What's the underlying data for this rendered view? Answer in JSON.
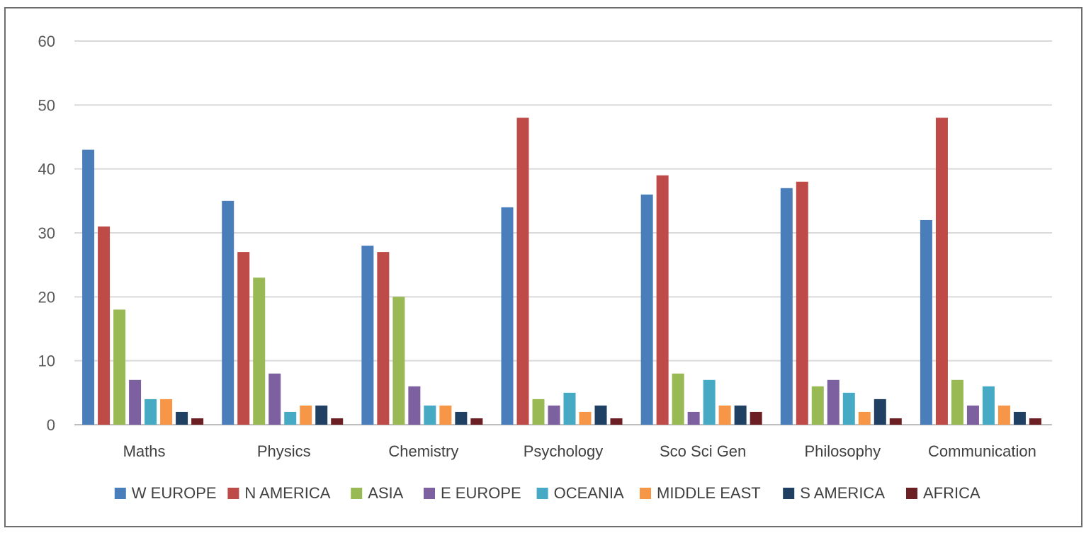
{
  "chart_data": {
    "type": "bar",
    "title": "",
    "xlabel": "",
    "ylabel": "",
    "ylim": [
      0,
      60
    ],
    "yticks": [
      0,
      10,
      20,
      30,
      40,
      50,
      60
    ],
    "grid": true,
    "legend_position": "bottom",
    "categories": [
      "Maths",
      "Physics",
      "Chemistry",
      "Psychology",
      "Sco Sci Gen",
      "Philosophy",
      "Communication"
    ],
    "series": [
      {
        "name": "W EUROPE",
        "color": "#4a7ebb",
        "values": [
          43,
          35,
          28,
          34,
          36,
          37,
          32
        ]
      },
      {
        "name": "N AMERICA",
        "color": "#be4b48",
        "values": [
          31,
          27,
          27,
          48,
          39,
          38,
          48
        ]
      },
      {
        "name": "ASIA",
        "color": "#98b954",
        "values": [
          18,
          23,
          20,
          4,
          8,
          6,
          7
        ]
      },
      {
        "name": "E EUROPE",
        "color": "#7d60a0",
        "values": [
          7,
          8,
          6,
          3,
          2,
          7,
          3
        ]
      },
      {
        "name": "OCEANIA",
        "color": "#46aac5",
        "values": [
          4,
          2,
          3,
          5,
          7,
          5,
          6
        ]
      },
      {
        "name": "MIDDLE EAST",
        "color": "#f79646",
        "values": [
          4,
          3,
          3,
          2,
          3,
          2,
          3
        ]
      },
      {
        "name": "S AMERICA",
        "color": "#1f3f63",
        "values": [
          2,
          3,
          2,
          3,
          3,
          4,
          2
        ]
      },
      {
        "name": "AFRICA",
        "color": "#6b1f22",
        "values": [
          1,
          1,
          1,
          1,
          2,
          1,
          1
        ]
      }
    ]
  }
}
